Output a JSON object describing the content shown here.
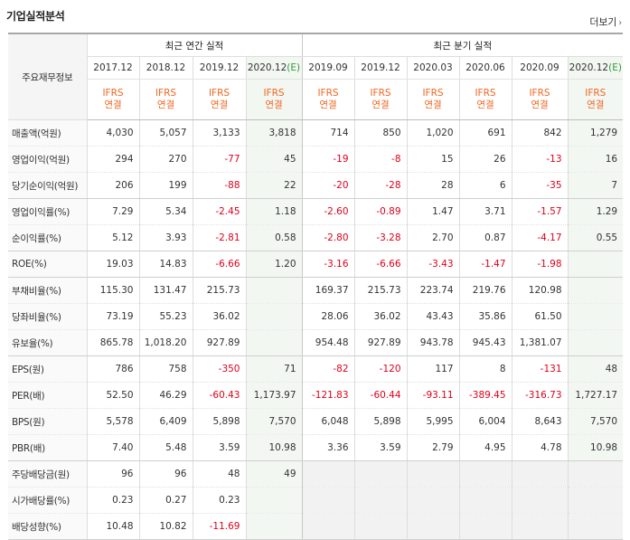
{
  "section": {
    "title": "기업실적분석",
    "more_label": "더보기"
  },
  "header": {
    "meta_label": "주요재무정보",
    "annual_label": "최근 연간 실적",
    "quarter_label": "최근 분기 실적",
    "periods": [
      {
        "label": "2017.12",
        "est": ""
      },
      {
        "label": "2018.12",
        "est": ""
      },
      {
        "label": "2019.12",
        "est": ""
      },
      {
        "label": "2020.12",
        "est": "(E)"
      },
      {
        "label": "2019.09",
        "est": ""
      },
      {
        "label": "2019.12",
        "est": ""
      },
      {
        "label": "2020.03",
        "est": ""
      },
      {
        "label": "2020.06",
        "est": ""
      },
      {
        "label": "2020.09",
        "est": ""
      },
      {
        "label": "2020.12",
        "est": "(E)"
      }
    ],
    "ifrs_top": "IFRS",
    "ifrs_bottom": "연결"
  },
  "rows": [
    {
      "label": "매출액(억원)",
      "values": [
        "4,030",
        "5,057",
        "3,133",
        "3,818",
        "714",
        "850",
        "1,020",
        "691",
        "842",
        "1,279"
      ]
    },
    {
      "label": "영업이익(억원)",
      "values": [
        "294",
        "270",
        "-77",
        "45",
        "-19",
        "-8",
        "15",
        "26",
        "-13",
        "16"
      ]
    },
    {
      "label": "당기순이익(억원)",
      "values": [
        "206",
        "199",
        "-88",
        "22",
        "-20",
        "-28",
        "28",
        "6",
        "-35",
        "7"
      ]
    },
    {
      "label": "영업이익률(%)",
      "values": [
        "7.29",
        "5.34",
        "-2.45",
        "1.18",
        "-2.60",
        "-0.89",
        "1.47",
        "3.71",
        "-1.57",
        "1.29"
      ]
    },
    {
      "label": "순이익률(%)",
      "values": [
        "5.12",
        "3.93",
        "-2.81",
        "0.58",
        "-2.80",
        "-3.28",
        "2.70",
        "0.87",
        "-4.17",
        "0.55"
      ]
    },
    {
      "label": "ROE(%)",
      "values": [
        "19.03",
        "14.83",
        "-6.66",
        "1.20",
        "-3.16",
        "-6.66",
        "-3.43",
        "-1.47",
        "-1.98",
        ""
      ]
    },
    {
      "label": "부채비율(%)",
      "values": [
        "115.30",
        "131.47",
        "215.73",
        "",
        "169.37",
        "215.73",
        "223.74",
        "219.76",
        "120.98",
        ""
      ]
    },
    {
      "label": "당좌비율(%)",
      "values": [
        "73.19",
        "55.23",
        "36.02",
        "",
        "28.06",
        "36.02",
        "43.43",
        "35.86",
        "61.50",
        ""
      ]
    },
    {
      "label": "유보율(%)",
      "values": [
        "865.78",
        "1,018.20",
        "927.89",
        "",
        "954.48",
        "927.89",
        "943.78",
        "945.43",
        "1,381.07",
        ""
      ]
    },
    {
      "label": "EPS(원)",
      "values": [
        "786",
        "758",
        "-350",
        "71",
        "-82",
        "-120",
        "117",
        "8",
        "-131",
        "48"
      ]
    },
    {
      "label": "PER(배)",
      "values": [
        "52.50",
        "46.29",
        "-60.43",
        "1,173.97",
        "-121.83",
        "-60.44",
        "-93.11",
        "-389.45",
        "-316.73",
        "1,727.17"
      ]
    },
    {
      "label": "BPS(원)",
      "values": [
        "5,578",
        "6,409",
        "5,898",
        "7,570",
        "6,048",
        "5,898",
        "5,995",
        "6,004",
        "8,643",
        "7,570"
      ]
    },
    {
      "label": "PBR(배)",
      "values": [
        "7.40",
        "5.48",
        "3.59",
        "10.98",
        "3.36",
        "3.59",
        "2.79",
        "4.95",
        "4.78",
        "10.98"
      ]
    },
    {
      "label": "주당배당금(원)",
      "values": [
        "96",
        "96",
        "48",
        "49",
        "",
        "",
        "",
        "",
        "",
        ""
      ]
    },
    {
      "label": "시가배당률(%)",
      "values": [
        "0.23",
        "0.27",
        "0.23",
        "",
        "",
        "",
        "",
        "",
        "",
        ""
      ]
    },
    {
      "label": "배당성향(%)",
      "values": [
        "10.48",
        "10.82",
        "-11.69",
        "",
        "",
        "",
        "",
        "",
        "",
        ""
      ]
    }
  ],
  "colors": {
    "negative": "#e0001b",
    "ifrs": "#f16622",
    "estimate": "#2e9a3a"
  }
}
